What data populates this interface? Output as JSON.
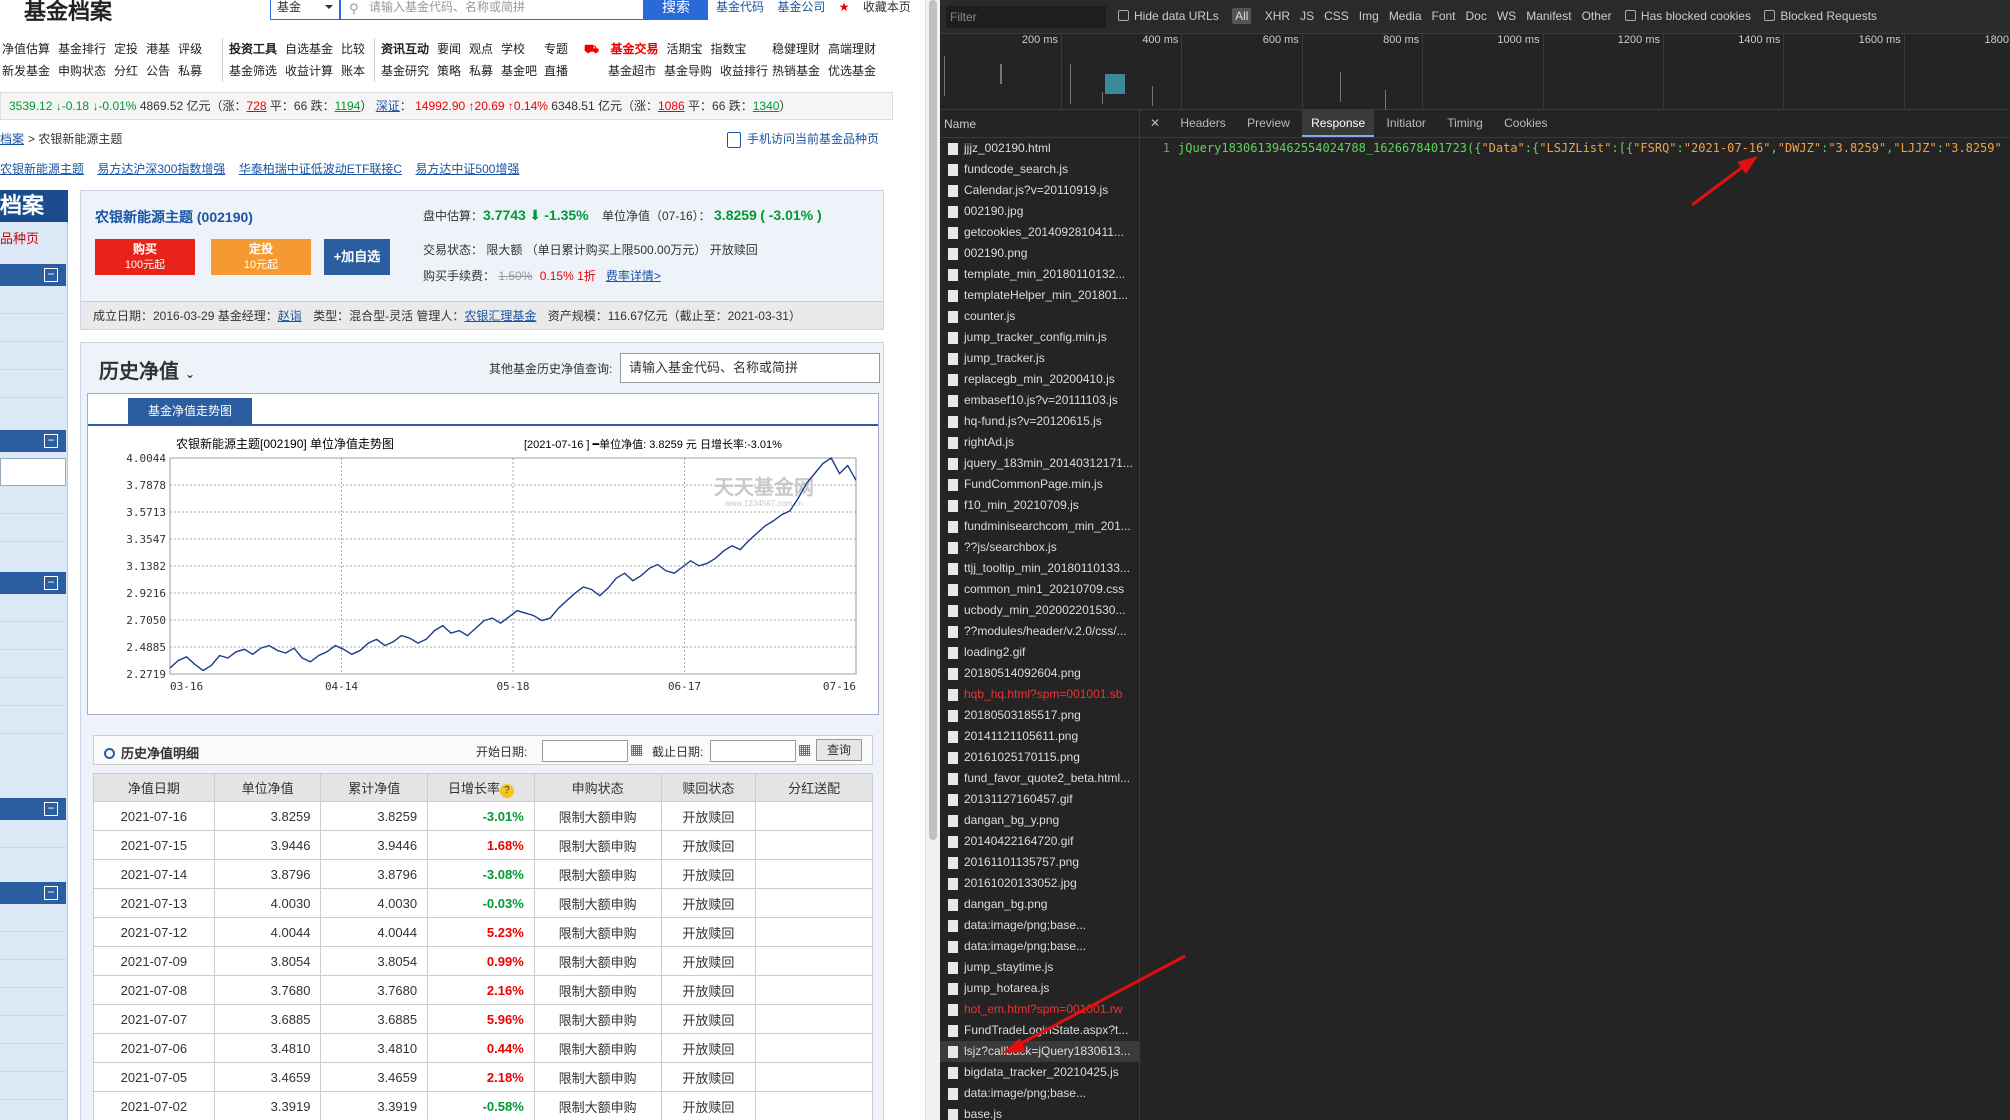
{
  "site": {
    "logo": "基金档案",
    "search_select": "基金",
    "search_placeholder": "请输入基金代码、名称或简拼",
    "search_button": "搜索",
    "toplinks": [
      "基金代码",
      "基金公司",
      "收藏本页"
    ]
  },
  "nav": {
    "groups": [
      {
        "row1": [
          "净值估算",
          "基金排行",
          "定投",
          "港基",
          "评级"
        ],
        "row2": [
          "新发基金",
          "申购状态",
          "分红",
          "公告",
          "私募"
        ]
      },
      {
        "row1": [
          "投资工具",
          "自选基金",
          "比较"
        ],
        "row2": [
          "基金筛选",
          "收益计算",
          "账本"
        ]
      },
      {
        "row1": [
          "资讯互动",
          "要闻",
          "观点",
          "学校"
        ],
        "row2": [
          "基金研究",
          "策略",
          "私募",
          "基金吧"
        ]
      },
      {
        "row1": [
          "专题"
        ],
        "row2": [
          "直播"
        ]
      },
      {
        "row1": [
          "基金交易",
          "活期宝",
          "指数宝"
        ],
        "row2": [
          "基金超市",
          "基金导购",
          "收益排行"
        ]
      },
      {
        "row1": [
          "稳健理财",
          "高端理财"
        ],
        "row2": [
          "热销基金",
          "优选基金"
        ]
      }
    ]
  },
  "ticker": {
    "sh_value": "3539.12",
    "sh_change": "↓-0.18",
    "sh_pct": "↓-0.01%",
    "sh_amount": "4869.52 亿元（涨：",
    "sh_up": "728",
    "sh_flat": "平：66 跌：",
    "sh_down": "1194",
    "sz_label": "深证",
    "sz_value": "14992.90",
    "sz_change": "↑20.69",
    "sz_pct": "↑0.14%",
    "sz_amount": "6348.51 亿元（涨：",
    "sz_up": "1086",
    "sz_flat": "平：66 跌：",
    "sz_down": "1340"
  },
  "breadcrumb": {
    "link": "档案",
    "current": "农银新能源主题"
  },
  "mobile_link": "手机访问当前基金品种页",
  "fund_links": [
    "农银新能源主题",
    "易方达沪深300指数增强",
    "华泰柏瑞中证低波动ETF联接C",
    "易方达中证500增强"
  ],
  "sidebar": {
    "title": "档案",
    "sub": "品种页"
  },
  "fund": {
    "name": "农银新能源主题 (002190)",
    "buy_label": "购买",
    "buy_sub": "100元起",
    "plan_label": "定投",
    "plan_sub": "10元起",
    "fav_label": "+加自选",
    "est_label": "盘中估算：",
    "est_value": "3.7743",
    "est_pct": "-1.35%",
    "nav_label": "单位净值（07-16）：",
    "nav_value": "3.8259",
    "nav_pct": "( -3.01% )",
    "trade_status": "交易状态：  限大额  （单日累计购买上限500.00万元）    开放赎回",
    "fee_label": "购买手续费：",
    "fee_old": "1.50%",
    "fee_new": "0.15%",
    "fee_disc": "1折",
    "fee_link": "费率详情>",
    "setup": "成立日期：2016-03-29   基金经理：",
    "manager": "赵诣",
    "type": "类型：混合型-灵活   管理人：",
    "company": "农银汇理基金",
    "scale": "资产规模：116.67亿元（截止至：2021-03-31）"
  },
  "history": {
    "title": "历史净值",
    "other_query": "其他基金历史净值查询:",
    "other_placeholder": "请输入基金代码、名称或简拼",
    "chart_tab": "基金净值走势图",
    "table_title": "历史净值明细",
    "start_label": "开始日期:",
    "end_label": "截止日期:",
    "query_button": "查询"
  },
  "chart_data": {
    "type": "line",
    "title": "农银新能源主题[002190] 单位净值走势图",
    "legend": "[2021-07-16 ]  ━单位净值: 3.8259 元  日增长率:-3.01%",
    "watermark": "天天基金网",
    "watermark_url": "www.1234567.com.cn",
    "x_ticks": [
      "03-16",
      "04-14",
      "05-18",
      "06-17",
      "07-16"
    ],
    "y_ticks": [
      "4.0044",
      "3.7878",
      "3.5713",
      "3.3547",
      "3.1382",
      "2.9216",
      "2.7050",
      "2.4885",
      "2.2719"
    ],
    "ylim": [
      2.2719,
      4.0044
    ],
    "series": [
      {
        "values": [
          2.32,
          2.38,
          2.41,
          2.35,
          2.3,
          2.34,
          2.42,
          2.4,
          2.45,
          2.47,
          2.43,
          2.48,
          2.5,
          2.46,
          2.44,
          2.48,
          2.4,
          2.37,
          2.42,
          2.45,
          2.5,
          2.47,
          2.43,
          2.46,
          2.52,
          2.55,
          2.5,
          2.53,
          2.58,
          2.56,
          2.52,
          2.55,
          2.62,
          2.66,
          2.6,
          2.62,
          2.58,
          2.64,
          2.7,
          2.72,
          2.68,
          2.73,
          2.78,
          2.76,
          2.74,
          2.7,
          2.72,
          2.8,
          2.86,
          2.92,
          2.97,
          2.95,
          2.9,
          2.96,
          3.04,
          3.08,
          3.02,
          3.06,
          3.12,
          3.15,
          3.1,
          3.08,
          3.13,
          3.18,
          3.14,
          3.16,
          3.2,
          3.26,
          3.3,
          3.27,
          3.34,
          3.4,
          3.46,
          3.5,
          3.55,
          3.58,
          3.68,
          3.8,
          3.88,
          3.96,
          4.0044,
          3.8796,
          3.9446,
          3.8259
        ]
      }
    ]
  },
  "table": {
    "headers": [
      "净值日期",
      "单位净值",
      "累计净值",
      "日增长率",
      "申购状态",
      "赎回状态",
      "分红送配"
    ],
    "rows": [
      [
        "2021-07-16",
        "3.8259",
        "3.8259",
        "-3.01%",
        "限制大额申购",
        "开放赎回",
        ""
      ],
      [
        "2021-07-15",
        "3.9446",
        "3.9446",
        "1.68%",
        "限制大额申购",
        "开放赎回",
        ""
      ],
      [
        "2021-07-14",
        "3.8796",
        "3.8796",
        "-3.08%",
        "限制大额申购",
        "开放赎回",
        ""
      ],
      [
        "2021-07-13",
        "4.0030",
        "4.0030",
        "-0.03%",
        "限制大额申购",
        "开放赎回",
        ""
      ],
      [
        "2021-07-12",
        "4.0044",
        "4.0044",
        "5.23%",
        "限制大额申购",
        "开放赎回",
        ""
      ],
      [
        "2021-07-09",
        "3.8054",
        "3.8054",
        "0.99%",
        "限制大额申购",
        "开放赎回",
        ""
      ],
      [
        "2021-07-08",
        "3.7680",
        "3.7680",
        "2.16%",
        "限制大额申购",
        "开放赎回",
        ""
      ],
      [
        "2021-07-07",
        "3.6885",
        "3.6885",
        "5.96%",
        "限制大额申购",
        "开放赎回",
        ""
      ],
      [
        "2021-07-06",
        "3.4810",
        "3.4810",
        "0.44%",
        "限制大额申购",
        "开放赎回",
        ""
      ],
      [
        "2021-07-05",
        "3.4659",
        "3.4659",
        "2.18%",
        "限制大额申购",
        "开放赎回",
        ""
      ],
      [
        "2021-07-02",
        "3.3919",
        "3.3919",
        "-0.58%",
        "限制大额申购",
        "开放赎回",
        ""
      ]
    ]
  },
  "devtools": {
    "filter_placeholder": "Filter",
    "hide_data_urls": "Hide data URLs",
    "all_label": "All",
    "types": [
      "XHR",
      "JS",
      "CSS",
      "Img",
      "Media",
      "Font",
      "Doc",
      "WS",
      "Manifest",
      "Other"
    ],
    "blocked_cookies": "Has blocked cookies",
    "blocked_requests": "Blocked Requests",
    "timeline_ticks": [
      "200 ms",
      "400 ms",
      "600 ms",
      "800 ms",
      "1000 ms",
      "1200 ms",
      "1400 ms",
      "1600 ms",
      "1800 m"
    ],
    "name_header": "Name",
    "requests": [
      "jjjz_002190.html",
      "fundcode_search.js",
      "Calendar.js?v=20110919.js",
      "002190.jpg",
      "getcookies_2014092810411...",
      "002190.png",
      "template_min_20180110132...",
      "templateHelper_min_201801...",
      "counter.js",
      "jump_tracker_config.min.js",
      "jump_tracker.js",
      "replacegb_min_20200410.js",
      "embasef10.js?v=20111103.js",
      "hq-fund.js?v=20120615.js",
      "rightAd.js",
      "jquery_183min_20140312171...",
      "FundCommonPage.min.js",
      "f10_min_20210709.js",
      "fundminisearchcom_min_201...",
      "??js/searchbox.js",
      "ttjj_tooltip_min_20180110133...",
      "common_min1_20210709.css",
      "ucbody_min_202002201530...",
      "??modules/header/v.2.0/css/...",
      "loading2.gif",
      "20180514092604.png",
      "hqb_hq.html?spm=001001.sb",
      "20180503185517.png",
      "20141121105611.png",
      "20161025170115.png",
      "fund_favor_quote2_beta.html...",
      "20131127160457.gif",
      "dangan_bg_y.png",
      "20140422164720.gif",
      "20161101135757.png",
      "20161020133052.jpg",
      "dangan_bg.png",
      "data:image/png;base...",
      "data:image/png;base...",
      "jump_staytime.js",
      "jump_hotarea.js",
      "hot_em.html?spm=001001.rw",
      "FundTradeLoginState.aspx?t...",
      "lsjz?callback=jQuery1830613...",
      "bigdata_tracker_20210425.js",
      "data:image/png;base...",
      "base.js"
    ],
    "red_rows": [
      26,
      41
    ],
    "tabs": [
      "Headers",
      "Preview",
      "Response",
      "Initiator",
      "Timing",
      "Cookies"
    ],
    "active_tab": "Response",
    "line_no": "1",
    "code_callback": "jQuery18306139462554024788_1626678401723({",
    "code_data_key": "\"Data\"",
    "code_colon1": ":{",
    "code_list_key": "\"LSJZList\"",
    "code_open": ":[{",
    "code_k1": "\"FSRQ\"",
    "code_v1": "\"2021-07-16\"",
    "code_k2": "\"DWJZ\"",
    "code_v2": "\"3.8259\"",
    "code_k3": "\"LJJZ\"",
    "code_v3": "\"3.8259\""
  }
}
